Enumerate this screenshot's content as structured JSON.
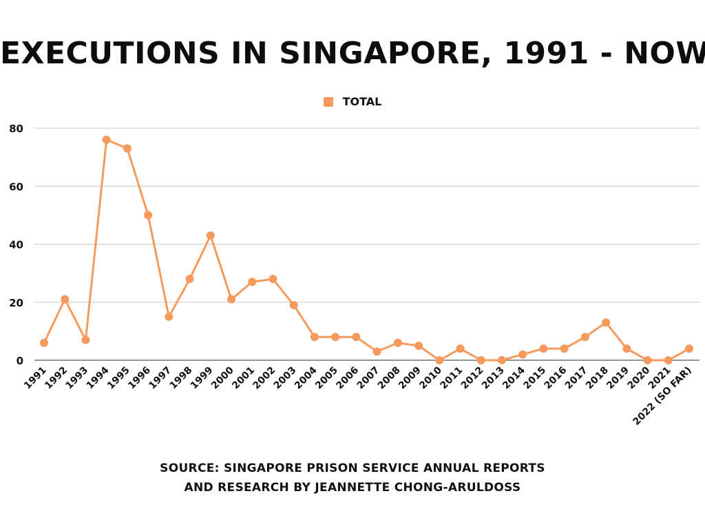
{
  "colors": {
    "series": "#F59A5C",
    "grid": "#c8c8c8",
    "baseline": "#555555",
    "text": "#111111"
  },
  "chart_data": {
    "type": "line",
    "title": "EXECUTIONS IN SINGAPORE, 1991 - NOW",
    "xlabel": "",
    "ylabel": "",
    "ylim": [
      0,
      80
    ],
    "yticks": [
      "0",
      "20",
      "40",
      "60",
      "80"
    ],
    "grid": true,
    "legend_position": "top-center",
    "categories": [
      "1991",
      "1992",
      "1993",
      "1994",
      "1995",
      "1996",
      "1997",
      "1998",
      "1999",
      "2000",
      "2001",
      "2002",
      "2003",
      "2004",
      "2005",
      "2006",
      "2007",
      "2008",
      "2009",
      "2010",
      "2011",
      "2012",
      "2013",
      "2014",
      "2015",
      "2016",
      "2017",
      "2018",
      "2019",
      "2020",
      "2021",
      "2022 (SO FAR)"
    ],
    "series": [
      {
        "name": "TOTAL",
        "values": [
          6,
          21,
          7,
          76,
          73,
          50,
          15,
          28,
          43,
          21,
          27,
          28,
          19,
          8,
          8,
          8,
          3,
          6,
          5,
          0,
          4,
          0,
          0,
          2,
          4,
          4,
          8,
          13,
          4,
          0,
          0,
          4
        ]
      }
    ],
    "source_lines": [
      "SOURCE: SINGAPORE PRISON SERVICE ANNUAL REPORTS",
      "AND RESEARCH BY JEANNETTE CHONG-ARULDOSS"
    ]
  }
}
